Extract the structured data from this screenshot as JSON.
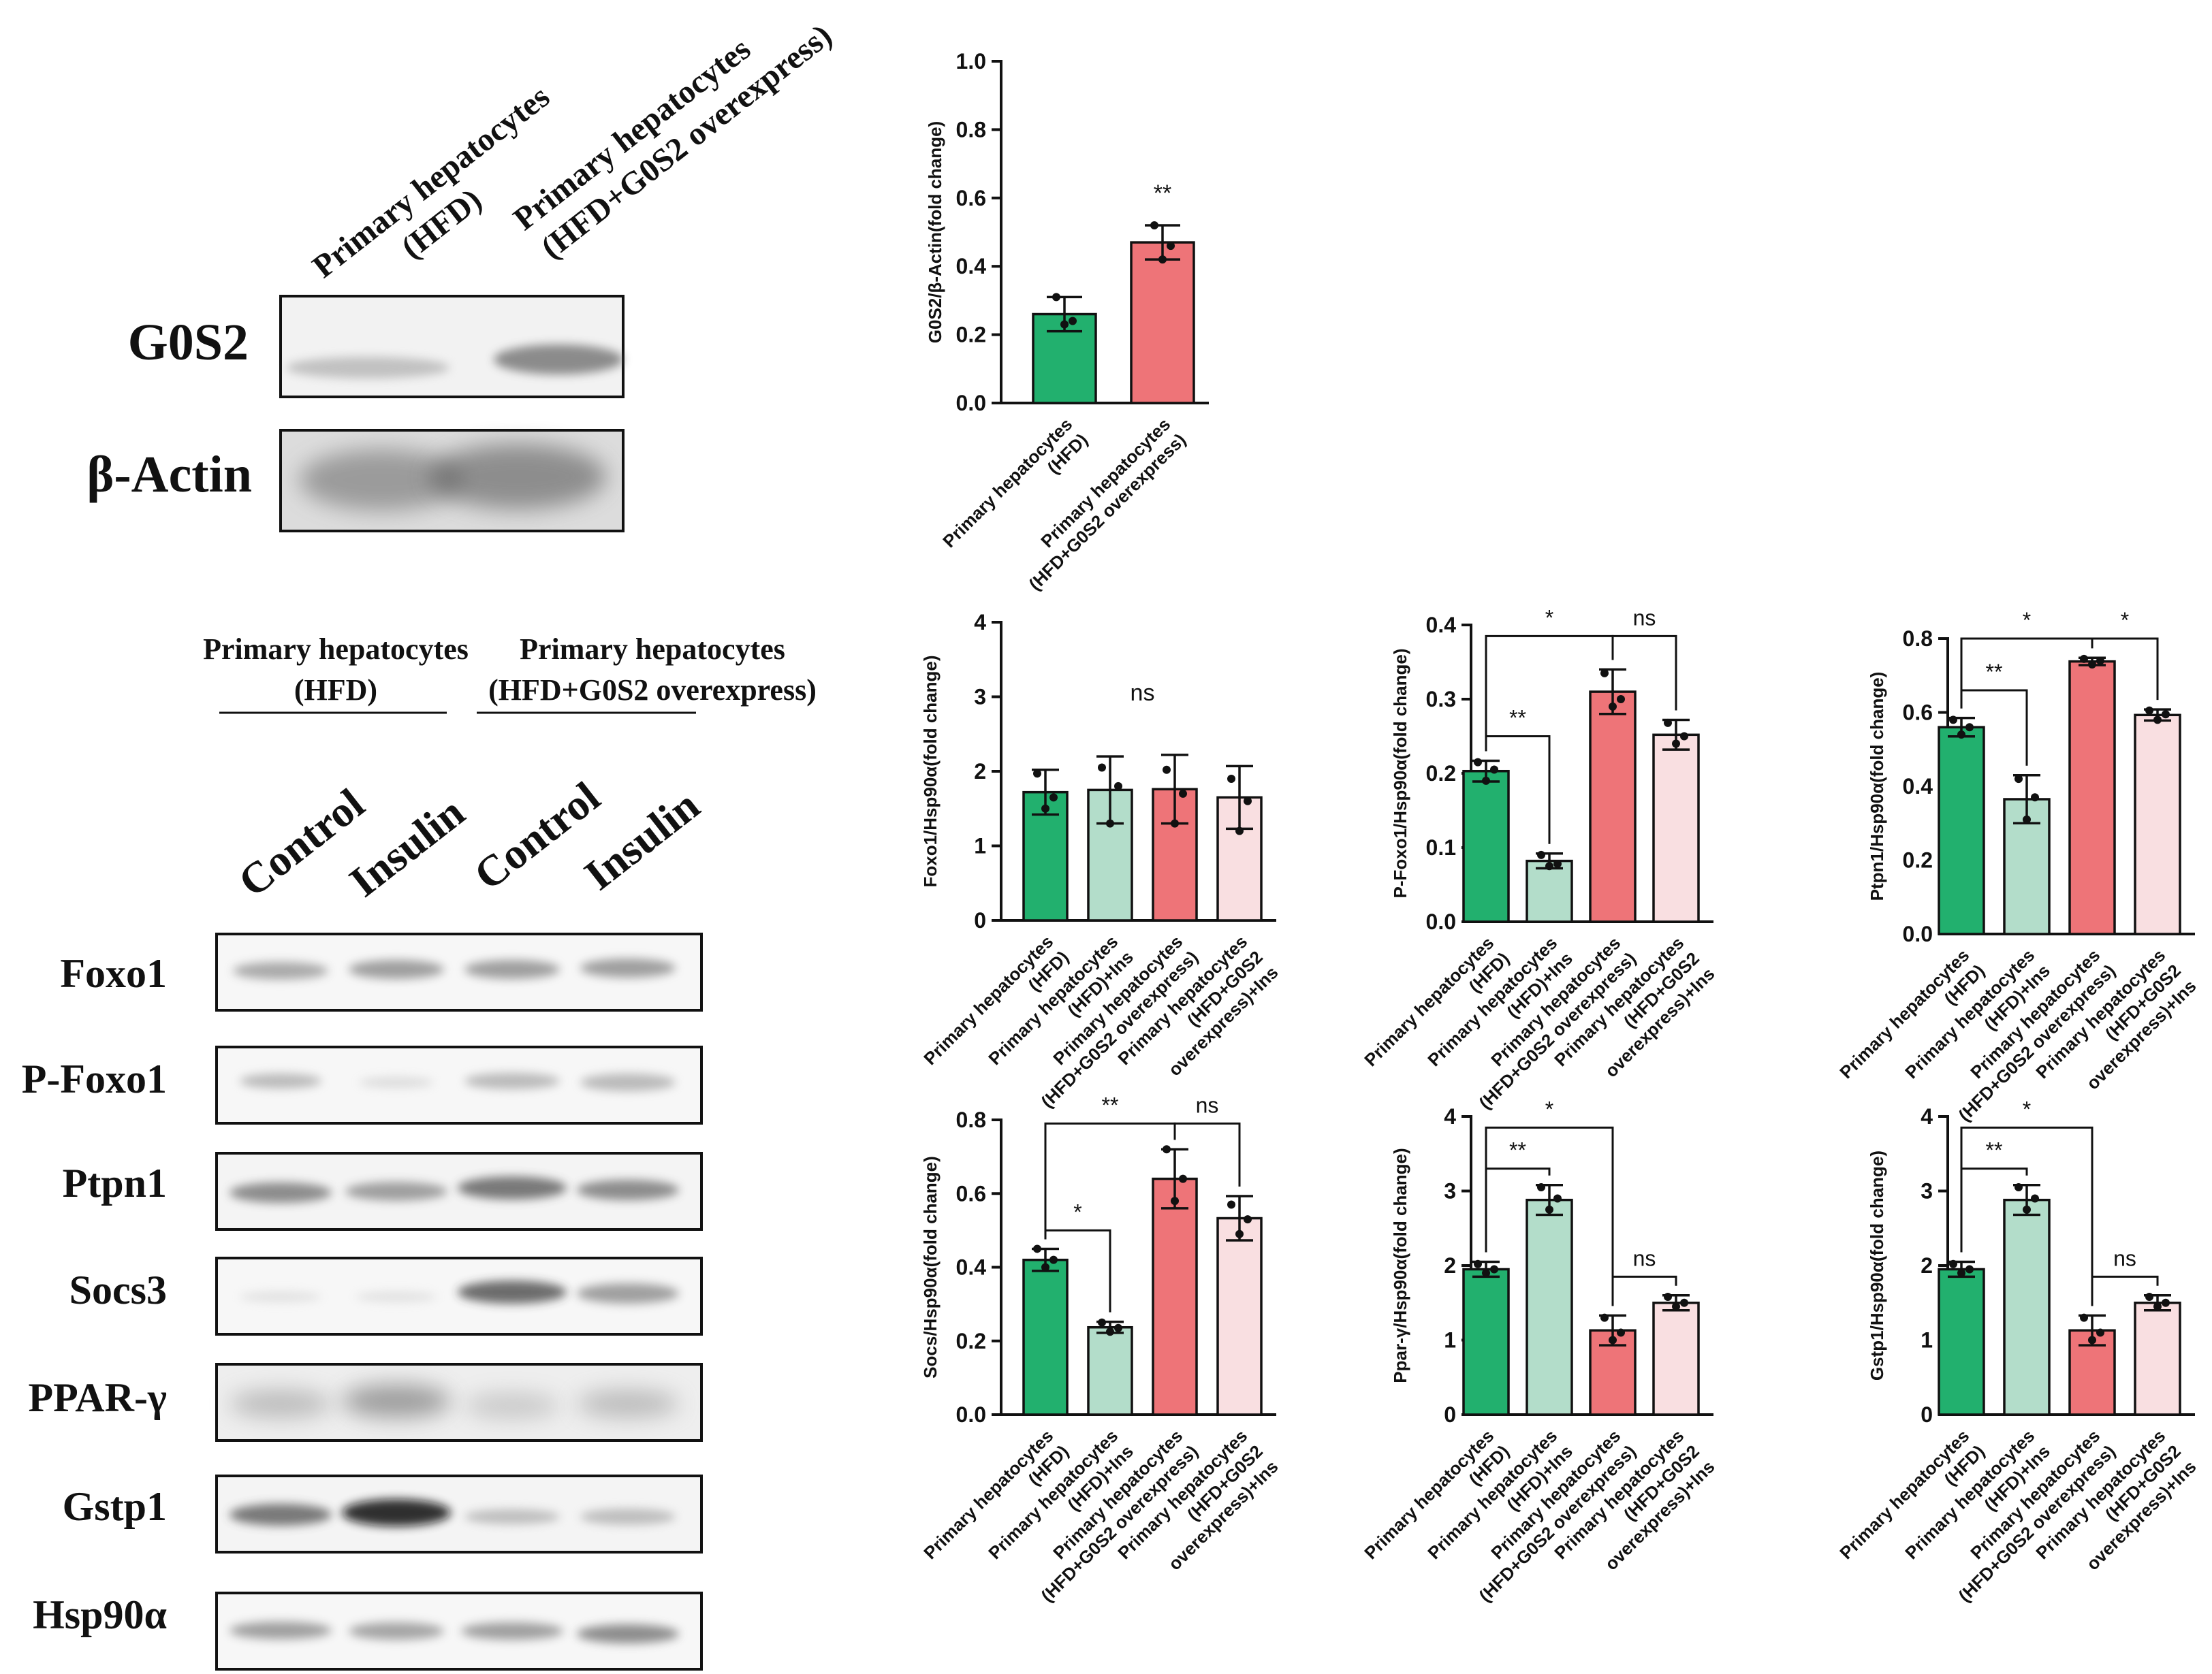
{
  "colors": {
    "hfd": "#22b06e",
    "hfd_ins": "#b3ddca",
    "g0s2": "#ee7478",
    "g0s2_ins": "#f9dfe1",
    "axis": "#111111"
  },
  "blot_top": {
    "col_labels": [
      [
        "Primary hepatocytes",
        "(HFD)"
      ],
      [
        "Primary hepatocytes",
        "(HFD+G0S2 overexpress)"
      ]
    ],
    "proteins": [
      "G0S2",
      "β-Actin"
    ]
  },
  "blot_bottom": {
    "group_labels": [
      [
        "Primary hepatocytes",
        "(HFD)"
      ],
      [
        "Primary hepatocytes",
        "(HFD+G0S2 overexpress)"
      ]
    ],
    "lane_labels": [
      "Control",
      "Insulin",
      "Control",
      "Insulin"
    ],
    "proteins": [
      "Foxo1",
      "P-Foxo1",
      "Ptpn1",
      "Socs3",
      "PPAR-γ",
      "Gstp1",
      "Hsp90α"
    ]
  },
  "chart_data": [
    {
      "type": "bar",
      "ylabel": "G0S2/β-Actin(fold change)",
      "ylim": [
        0,
        1.0
      ],
      "yticks": [
        "0.0",
        "0.2",
        "0.4",
        "0.6",
        "0.8",
        "1.0"
      ],
      "categories": [
        [
          "Primary hepatocytes",
          "(HFD)"
        ],
        [
          "Primary hepatocytes",
          "(HFD+G0S2 overexpress)"
        ]
      ],
      "values": [
        0.26,
        0.47
      ],
      "errors": [
        0.05,
        0.05
      ],
      "points": [
        [
          0.31,
          0.24,
          0.23
        ],
        [
          0.52,
          0.46,
          0.42
        ]
      ],
      "colors": [
        "#22b06e",
        "#ee7478"
      ],
      "annotations": [
        {
          "text": "**",
          "bar": 1
        }
      ],
      "brackets": []
    },
    {
      "type": "bar",
      "ylabel": "Foxo1/Hsp90α(fold change)",
      "ylim": [
        0,
        4
      ],
      "yticks": [
        "0",
        "1",
        "2",
        "3",
        "4"
      ],
      "categories": [
        [
          "Primary hepatocytes",
          "(HFD)"
        ],
        [
          "Primary hepatocytes",
          "(HFD)+Ins"
        ],
        [
          "Primary hepatocytes",
          "(HFD+G0S2 overexpress)"
        ],
        [
          "Primary hepatocytes",
          "(HFD+G0S2",
          "overexpress)+Ins"
        ]
      ],
      "values": [
        1.72,
        1.75,
        1.76,
        1.65
      ],
      "errors": [
        0.3,
        0.45,
        0.46,
        0.42
      ],
      "points": [
        [
          1.97,
          1.65,
          1.5
        ],
        [
          2.05,
          1.8,
          1.3
        ],
        [
          2.02,
          1.7,
          1.3
        ],
        [
          1.9,
          1.6,
          1.2
        ]
      ],
      "colors": [
        "#22b06e",
        "#b3ddca",
        "#ee7478",
        "#f9dfe1"
      ],
      "annotations": [
        {
          "text": "ns",
          "y": 2.95
        }
      ],
      "brackets": []
    },
    {
      "type": "bar",
      "ylabel": "P-Foxo1/Hsp90α(fold change)",
      "ylim": [
        0,
        0.4
      ],
      "yticks": [
        "0.0",
        "0.1",
        "0.2",
        "0.3",
        "0.4"
      ],
      "categories": [
        [
          "Primary hepatocytes",
          "(HFD)"
        ],
        [
          "Primary hepatocytes",
          "(HFD)+Ins"
        ],
        [
          "Primary hepatocytes",
          "(HFD+G0S2 overexpress)"
        ],
        [
          "Primary hepatocytes",
          "(HFD+G0S2",
          "overexpress)+Ins"
        ]
      ],
      "values": [
        0.203,
        0.082,
        0.31,
        0.252
      ],
      "errors": [
        0.014,
        0.01,
        0.03,
        0.02
      ],
      "points": [
        [
          0.215,
          0.205,
          0.19
        ],
        [
          0.09,
          0.078,
          0.075
        ],
        [
          0.335,
          0.3,
          0.29
        ],
        [
          0.268,
          0.25,
          0.24
        ]
      ],
      "colors": [
        "#22b06e",
        "#b3ddca",
        "#ee7478",
        "#f9dfe1"
      ],
      "annotations": [],
      "brackets": [
        {
          "from": 0,
          "to": 1,
          "y": 0.25,
          "text": "**"
        },
        {
          "from": 0,
          "to": 2,
          "y": 0.385,
          "text": "*"
        },
        {
          "from": 2,
          "to": 3,
          "y": 0.385,
          "text": "ns"
        }
      ]
    },
    {
      "type": "bar",
      "ylabel": "Ptpn1/Hsp90α(fold change)",
      "ylim": [
        0,
        0.8
      ],
      "yticks": [
        "0.0",
        "0.2",
        "0.4",
        "0.6",
        "0.8"
      ],
      "categories": [
        [
          "Primary hepatocytes",
          "(HFD)"
        ],
        [
          "Primary hepatocytes",
          "(HFD)+Ins"
        ],
        [
          "Primary hepatocytes",
          "(HFD+G0S2 overexpress)"
        ],
        [
          "Primary hepatocytes",
          "(HFD+G0S2",
          "overexpress)+Ins"
        ]
      ],
      "values": [
        0.56,
        0.365,
        0.738,
        0.593
      ],
      "errors": [
        0.025,
        0.065,
        0.01,
        0.015
      ],
      "points": [
        [
          0.58,
          0.56,
          0.54
        ],
        [
          0.42,
          0.37,
          0.31
        ],
        [
          0.745,
          0.74,
          0.73
        ],
        [
          0.605,
          0.595,
          0.58
        ]
      ],
      "colors": [
        "#22b06e",
        "#b3ddca",
        "#ee7478",
        "#f9dfe1"
      ],
      "annotations": [],
      "brackets": [
        {
          "from": 0,
          "to": 1,
          "y": 0.66,
          "text": "**"
        },
        {
          "from": 0,
          "to": 2,
          "y": 0.8,
          "text": "*"
        },
        {
          "from": 2,
          "to": 3,
          "y": 0.8,
          "text": "*"
        }
      ]
    },
    {
      "type": "bar",
      "ylabel": "Socs/Hsp90α(fold change)",
      "ylim": [
        0,
        0.8
      ],
      "yticks": [
        "0.0",
        "0.2",
        "0.4",
        "0.6",
        "0.8"
      ],
      "categories": [
        [
          "Primary hepatocytes",
          "(HFD)"
        ],
        [
          "Primary hepatocytes",
          "(HFD)+Ins"
        ],
        [
          "Primary hepatocytes",
          "(HFD+G0S2 overexpress)"
        ],
        [
          "Primary hepatocytes",
          "(HFD+G0S2",
          "overexpress)+Ins"
        ]
      ],
      "values": [
        0.42,
        0.237,
        0.64,
        0.533
      ],
      "errors": [
        0.03,
        0.015,
        0.08,
        0.06
      ],
      "points": [
        [
          0.45,
          0.42,
          0.4
        ],
        [
          0.25,
          0.235,
          0.225
        ],
        [
          0.72,
          0.64,
          0.58
        ],
        [
          0.57,
          0.53,
          0.49
        ]
      ],
      "colors": [
        "#22b06e",
        "#b3ddca",
        "#ee7478",
        "#f9dfe1"
      ],
      "annotations": [],
      "brackets": [
        {
          "from": 0,
          "to": 1,
          "y": 0.5,
          "text": "*"
        },
        {
          "from": 0,
          "to": 2,
          "y": 0.79,
          "text": "**"
        },
        {
          "from": 2,
          "to": 3,
          "y": 0.79,
          "text": "ns"
        }
      ]
    },
    {
      "type": "bar",
      "ylabel": "Ppar-γ/Hsp90α(fold change)",
      "ylim": [
        0,
        4
      ],
      "yticks": [
        "0",
        "1",
        "2",
        "3",
        "4"
      ],
      "categories": [
        [
          "Primary hepatocytes",
          "(HFD)"
        ],
        [
          "Primary hepatocytes",
          "(HFD)+Ins"
        ],
        [
          "Primary hepatocytes",
          "(HFD+G0S2 overexpress)"
        ],
        [
          "Primary hepatocytes",
          "(HFD+G0S2",
          "overexpress)+Ins"
        ]
      ],
      "values": [
        1.95,
        2.88,
        1.13,
        1.5
      ],
      "errors": [
        0.1,
        0.2,
        0.2,
        0.1
      ],
      "points": [
        [
          2.02,
          1.95,
          1.9
        ],
        [
          3.05,
          2.9,
          2.75
        ],
        [
          1.3,
          1.1,
          1.0
        ],
        [
          1.58,
          1.5,
          1.45
        ]
      ],
      "colors": [
        "#22b06e",
        "#b3ddca",
        "#ee7478",
        "#f9dfe1"
      ],
      "annotations": [],
      "brackets": [
        {
          "from": 0,
          "to": 1,
          "y": 3.3,
          "text": "**"
        },
        {
          "from": 0,
          "to": 2,
          "y": 3.85,
          "text": "*"
        },
        {
          "from": 2,
          "to": 3,
          "y": 1.85,
          "text": "ns"
        }
      ]
    },
    {
      "type": "bar",
      "ylabel": "Gstp1/Hsp90α(fold change)",
      "ylim": [
        0,
        4
      ],
      "yticks": [
        "0",
        "1",
        "2",
        "3",
        "4"
      ],
      "categories": [
        [
          "Primary hepatocytes",
          "(HFD)"
        ],
        [
          "Primary hepatocytes",
          "(HFD)+Ins"
        ],
        [
          "Primary hepatocytes",
          "(HFD+G0S2 overexpress)"
        ],
        [
          "Primary hepatocytes",
          "(HFD+G0S2",
          "overexpress)+Ins"
        ]
      ],
      "values": [
        1.95,
        2.88,
        1.13,
        1.5
      ],
      "errors": [
        0.1,
        0.2,
        0.2,
        0.1
      ],
      "points": [
        [
          2.02,
          1.95,
          1.9
        ],
        [
          3.05,
          2.9,
          2.75
        ],
        [
          1.3,
          1.1,
          1.0
        ],
        [
          1.58,
          1.5,
          1.45
        ]
      ],
      "colors": [
        "#22b06e",
        "#b3ddca",
        "#ee7478",
        "#f9dfe1"
      ],
      "annotations": [],
      "brackets": [
        {
          "from": 0,
          "to": 1,
          "y": 3.3,
          "text": "**"
        },
        {
          "from": 0,
          "to": 2,
          "y": 3.85,
          "text": "*"
        },
        {
          "from": 2,
          "to": 3,
          "y": 1.85,
          "text": "ns"
        }
      ]
    }
  ]
}
